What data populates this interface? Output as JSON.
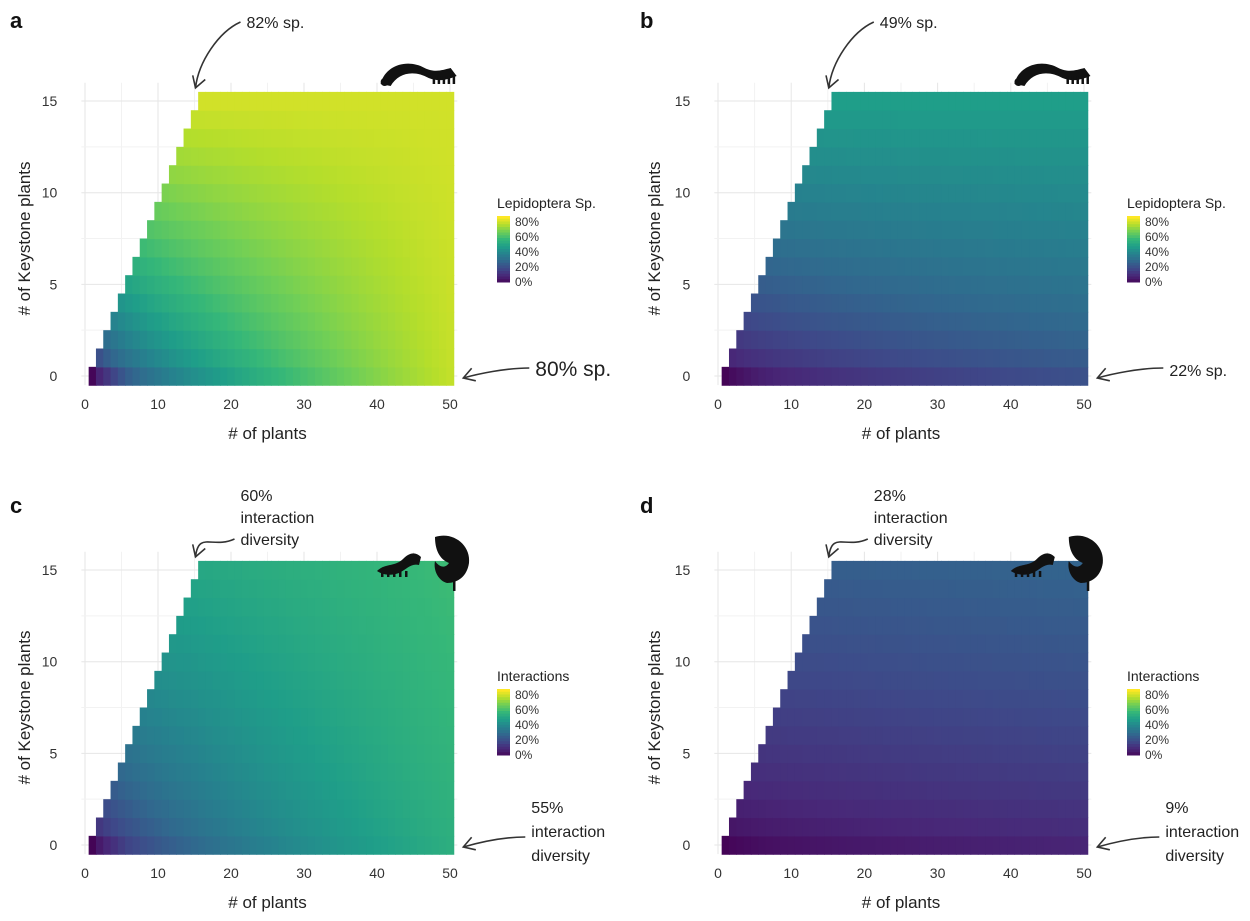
{
  "colormap": [
    "#440154",
    "#482878",
    "#3e4989",
    "#31688e",
    "#26828e",
    "#1f9e89",
    "#35b779",
    "#6ece58",
    "#b5de2b",
    "#fde725"
  ],
  "panels": [
    {
      "letter": "a",
      "legend_title": "Lepidoptera Sp.",
      "legend_ticks": [
        "80%",
        "60%",
        "40%",
        "20%",
        "0%"
      ],
      "icon": "caterpillar-icon",
      "top_annotation": "82% sp.",
      "bottom_annotation": "80% sp."
    },
    {
      "letter": "b",
      "legend_title": "Lepidoptera Sp.",
      "legend_ticks": [
        "80%",
        "60%",
        "40%",
        "20%",
        "0%"
      ],
      "icon": "caterpillar-icon",
      "top_annotation": "49% sp.",
      "bottom_annotation": "22% sp."
    },
    {
      "letter": "c",
      "legend_title": "Interactions",
      "legend_ticks": [
        "80%",
        "60%",
        "40%",
        "20%",
        "0%"
      ],
      "icon": "caterpillar-and-leaf-icon",
      "top_annotation": "60%\ninteraction\ndiversity",
      "bottom_annotation": "55%\ninteraction\ndiversity"
    },
    {
      "letter": "d",
      "legend_title": "Interactions",
      "legend_ticks": [
        "80%",
        "60%",
        "40%",
        "20%",
        "0%"
      ],
      "icon": "caterpillar-and-leaf-icon",
      "top_annotation": "28%\ninteraction\ndiversity",
      "bottom_annotation": "9%\ninteraction\ndiversity"
    }
  ],
  "chart_data": [
    {
      "type": "heatmap",
      "panel": "a",
      "xlabel": "# of plants",
      "ylabel": "# of Keystone plants",
      "x_ticks": [
        "0",
        "10",
        "20",
        "30",
        "40",
        "50"
      ],
      "y_ticks": [
        "0",
        "5",
        "10",
        "15"
      ],
      "xlim": [
        -0.5,
        51
      ],
      "ylim": [
        -0.5,
        16
      ],
      "x_range": [
        1,
        50
      ],
      "y_range": [
        0,
        15
      ],
      "constraint": "keystone plants <= plants - 1 (for plants >= 2)",
      "corner_values": {
        "x1_y0": 2,
        "x50_y0": 80,
        "x15_y15": 82,
        "x50_y15": 82
      },
      "value_range": [
        0,
        0.88
      ],
      "legend": {
        "title": "Lepidoptera Sp.",
        "ticks": [
          "0%",
          "20%",
          "40%",
          "60%",
          "80%"
        ]
      }
    },
    {
      "type": "heatmap",
      "panel": "b",
      "xlabel": "# of plants",
      "ylabel": "# of Keystone plants",
      "x_ticks": [
        "0",
        "10",
        "20",
        "30",
        "40",
        "50"
      ],
      "y_ticks": [
        "0",
        "5",
        "10",
        "15"
      ],
      "xlim": [
        -0.5,
        51
      ],
      "ylim": [
        -0.5,
        16
      ],
      "x_range": [
        1,
        50
      ],
      "y_range": [
        0,
        15
      ],
      "constraint": "keystone plants <= plants - 1 (for plants >= 2)",
      "corner_values": {
        "x1_y0": 1,
        "x50_y0": 22,
        "x15_y15": 49,
        "x50_y15": 49
      },
      "value_range": [
        0,
        0.88
      ],
      "legend": {
        "title": "Lepidoptera Sp.",
        "ticks": [
          "0%",
          "20%",
          "40%",
          "60%",
          "80%"
        ]
      }
    },
    {
      "type": "heatmap",
      "panel": "c",
      "xlabel": "# of plants",
      "ylabel": "# of Keystone plants",
      "x_ticks": [
        "0",
        "10",
        "20",
        "30",
        "40",
        "50"
      ],
      "y_ticks": [
        "0",
        "5",
        "10",
        "15"
      ],
      "xlim": [
        -0.5,
        51
      ],
      "ylim": [
        -0.5,
        16
      ],
      "x_range": [
        1,
        50
      ],
      "y_range": [
        0,
        15
      ],
      "constraint": "keystone plants <= plants - 1 (for plants >= 2)",
      "corner_values": {
        "x1_y0": 1,
        "x50_y0": 55,
        "x15_y15": 52,
        "x50_y15": 60
      },
      "value_range": [
        0,
        0.88
      ],
      "legend": {
        "title": "Interactions",
        "ticks": [
          "0%",
          "20%",
          "40%",
          "60%",
          "80%"
        ]
      }
    },
    {
      "type": "heatmap",
      "panel": "d",
      "xlabel": "# of plants",
      "ylabel": "# of Keystone plants",
      "x_ticks": [
        "0",
        "10",
        "20",
        "30",
        "40",
        "50"
      ],
      "y_ticks": [
        "0",
        "5",
        "10",
        "15"
      ],
      "xlim": [
        -0.5,
        51
      ],
      "ylim": [
        -0.5,
        16
      ],
      "x_range": [
        1,
        50
      ],
      "y_range": [
        0,
        15
      ],
      "constraint": "keystone plants <= plants - 1 (for plants >= 2)",
      "corner_values": {
        "x1_y0": 1,
        "x50_y0": 9,
        "x15_y15": 26,
        "x50_y15": 28
      },
      "value_range": [
        0,
        0.88
      ],
      "legend": {
        "title": "Interactions",
        "ticks": [
          "0%",
          "20%",
          "40%",
          "60%",
          "80%"
        ]
      }
    }
  ]
}
